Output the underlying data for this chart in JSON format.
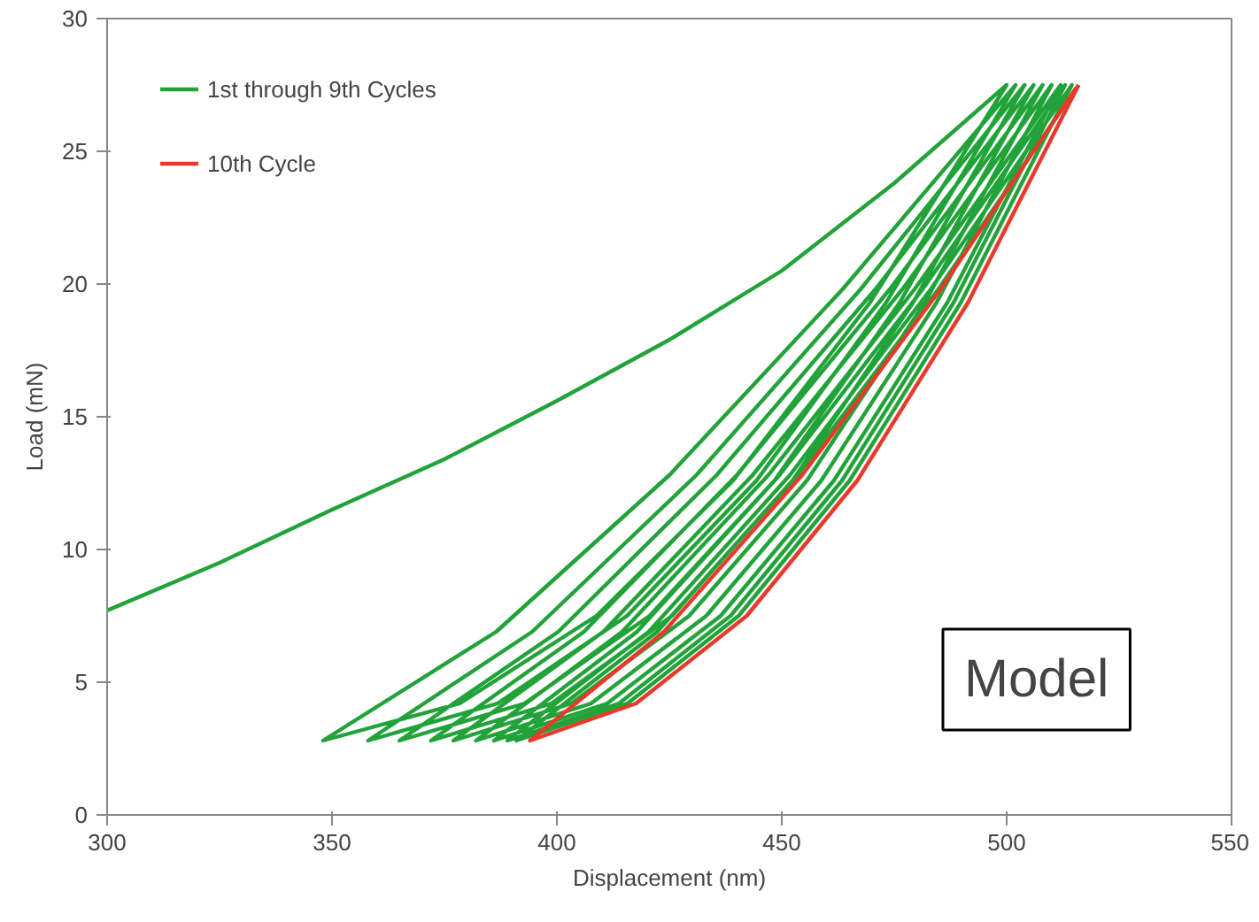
{
  "chart_data": {
    "type": "line",
    "xlabel": "Displacement (nm)",
    "ylabel": "Load (mN)",
    "xlim": [
      300,
      550
    ],
    "ylim": [
      0,
      30
    ],
    "xticks": [
      300,
      350,
      400,
      450,
      500,
      550
    ],
    "yticks": [
      0,
      5,
      10,
      15,
      20,
      25,
      30
    ],
    "grid": false,
    "legend": "top left",
    "line_style": "solid",
    "marker": "none",
    "series": [
      {
        "name": "1st through 9th Cycles",
        "color": "#22a33a",
        "x": [
          300,
          325,
          350,
          375,
          400,
          425,
          450,
          475,
          500,
          469.6,
          439.2,
          408.8,
          378.4,
          348,
          386.5,
          425,
          463.5,
          502,
          473.2,
          444.4,
          415.6,
          386.8,
          358,
          394.5,
          431,
          467.5,
          504,
          476.2,
          448.4,
          420.6,
          392.8,
          365,
          400.3,
          435.5,
          470.8,
          506,
          479.2,
          452.4,
          425.6,
          398.8,
          372,
          406,
          440,
          474,
          508,
          481.8,
          455.6,
          429.4,
          403.2,
          377,
          410.3,
          443.5,
          476.8,
          510,
          484.4,
          458.8,
          433.2,
          407.6,
          382,
          414.5,
          447,
          479.5,
          512,
          486.8,
          461.6,
          436.4,
          411.2,
          386,
          417.8,
          449.5,
          481.3,
          513,
          488.2,
          463.4,
          438.6,
          413.8,
          389,
          420.4,
          451.8,
          483.1,
          514.5,
          489.8,
          465.1,
          440.4,
          415.7,
          391,
          422.3,
          453.5,
          484.8,
          516
        ],
        "values": [
          7.7,
          9.5,
          11.5,
          13.4,
          15.6,
          17.9,
          20.5,
          23.8,
          27.5,
          19.3,
          12.6,
          7.5,
          4.2,
          2.8,
          6.9,
          12.8,
          19.8,
          27.5,
          19.3,
          12.6,
          7.5,
          4.2,
          2.8,
          6.9,
          12.8,
          19.8,
          27.5,
          19.3,
          12.6,
          7.5,
          4.2,
          2.8,
          6.9,
          12.8,
          19.8,
          27.5,
          19.3,
          12.6,
          7.5,
          4.2,
          2.8,
          6.9,
          12.8,
          19.8,
          27.5,
          19.3,
          12.6,
          7.5,
          4.2,
          2.8,
          6.9,
          12.8,
          19.8,
          27.5,
          19.3,
          12.6,
          7.5,
          4.2,
          2.8,
          6.9,
          12.8,
          19.8,
          27.5,
          19.3,
          12.6,
          7.5,
          4.2,
          2.8,
          6.9,
          12.8,
          19.8,
          27.5,
          19.3,
          12.6,
          7.5,
          4.2,
          2.8,
          6.9,
          12.8,
          19.8,
          27.5,
          19.3,
          12.6,
          7.5,
          4.2,
          2.8,
          6.9,
          12.8,
          19.8,
          27.5
        ]
      },
      {
        "name": "10th Cycle",
        "color": "#e8392a",
        "x": [
          516,
          491.4,
          466.8,
          442.2,
          417.6,
          394,
          423.8,
          454.5,
          485.3,
          515.5
        ],
        "values": [
          27.5,
          19.3,
          12.6,
          7.5,
          4.2,
          2.8,
          6.9,
          12.8,
          19.8,
          27.4
        ]
      }
    ],
    "annotations": [
      "Model"
    ]
  }
}
